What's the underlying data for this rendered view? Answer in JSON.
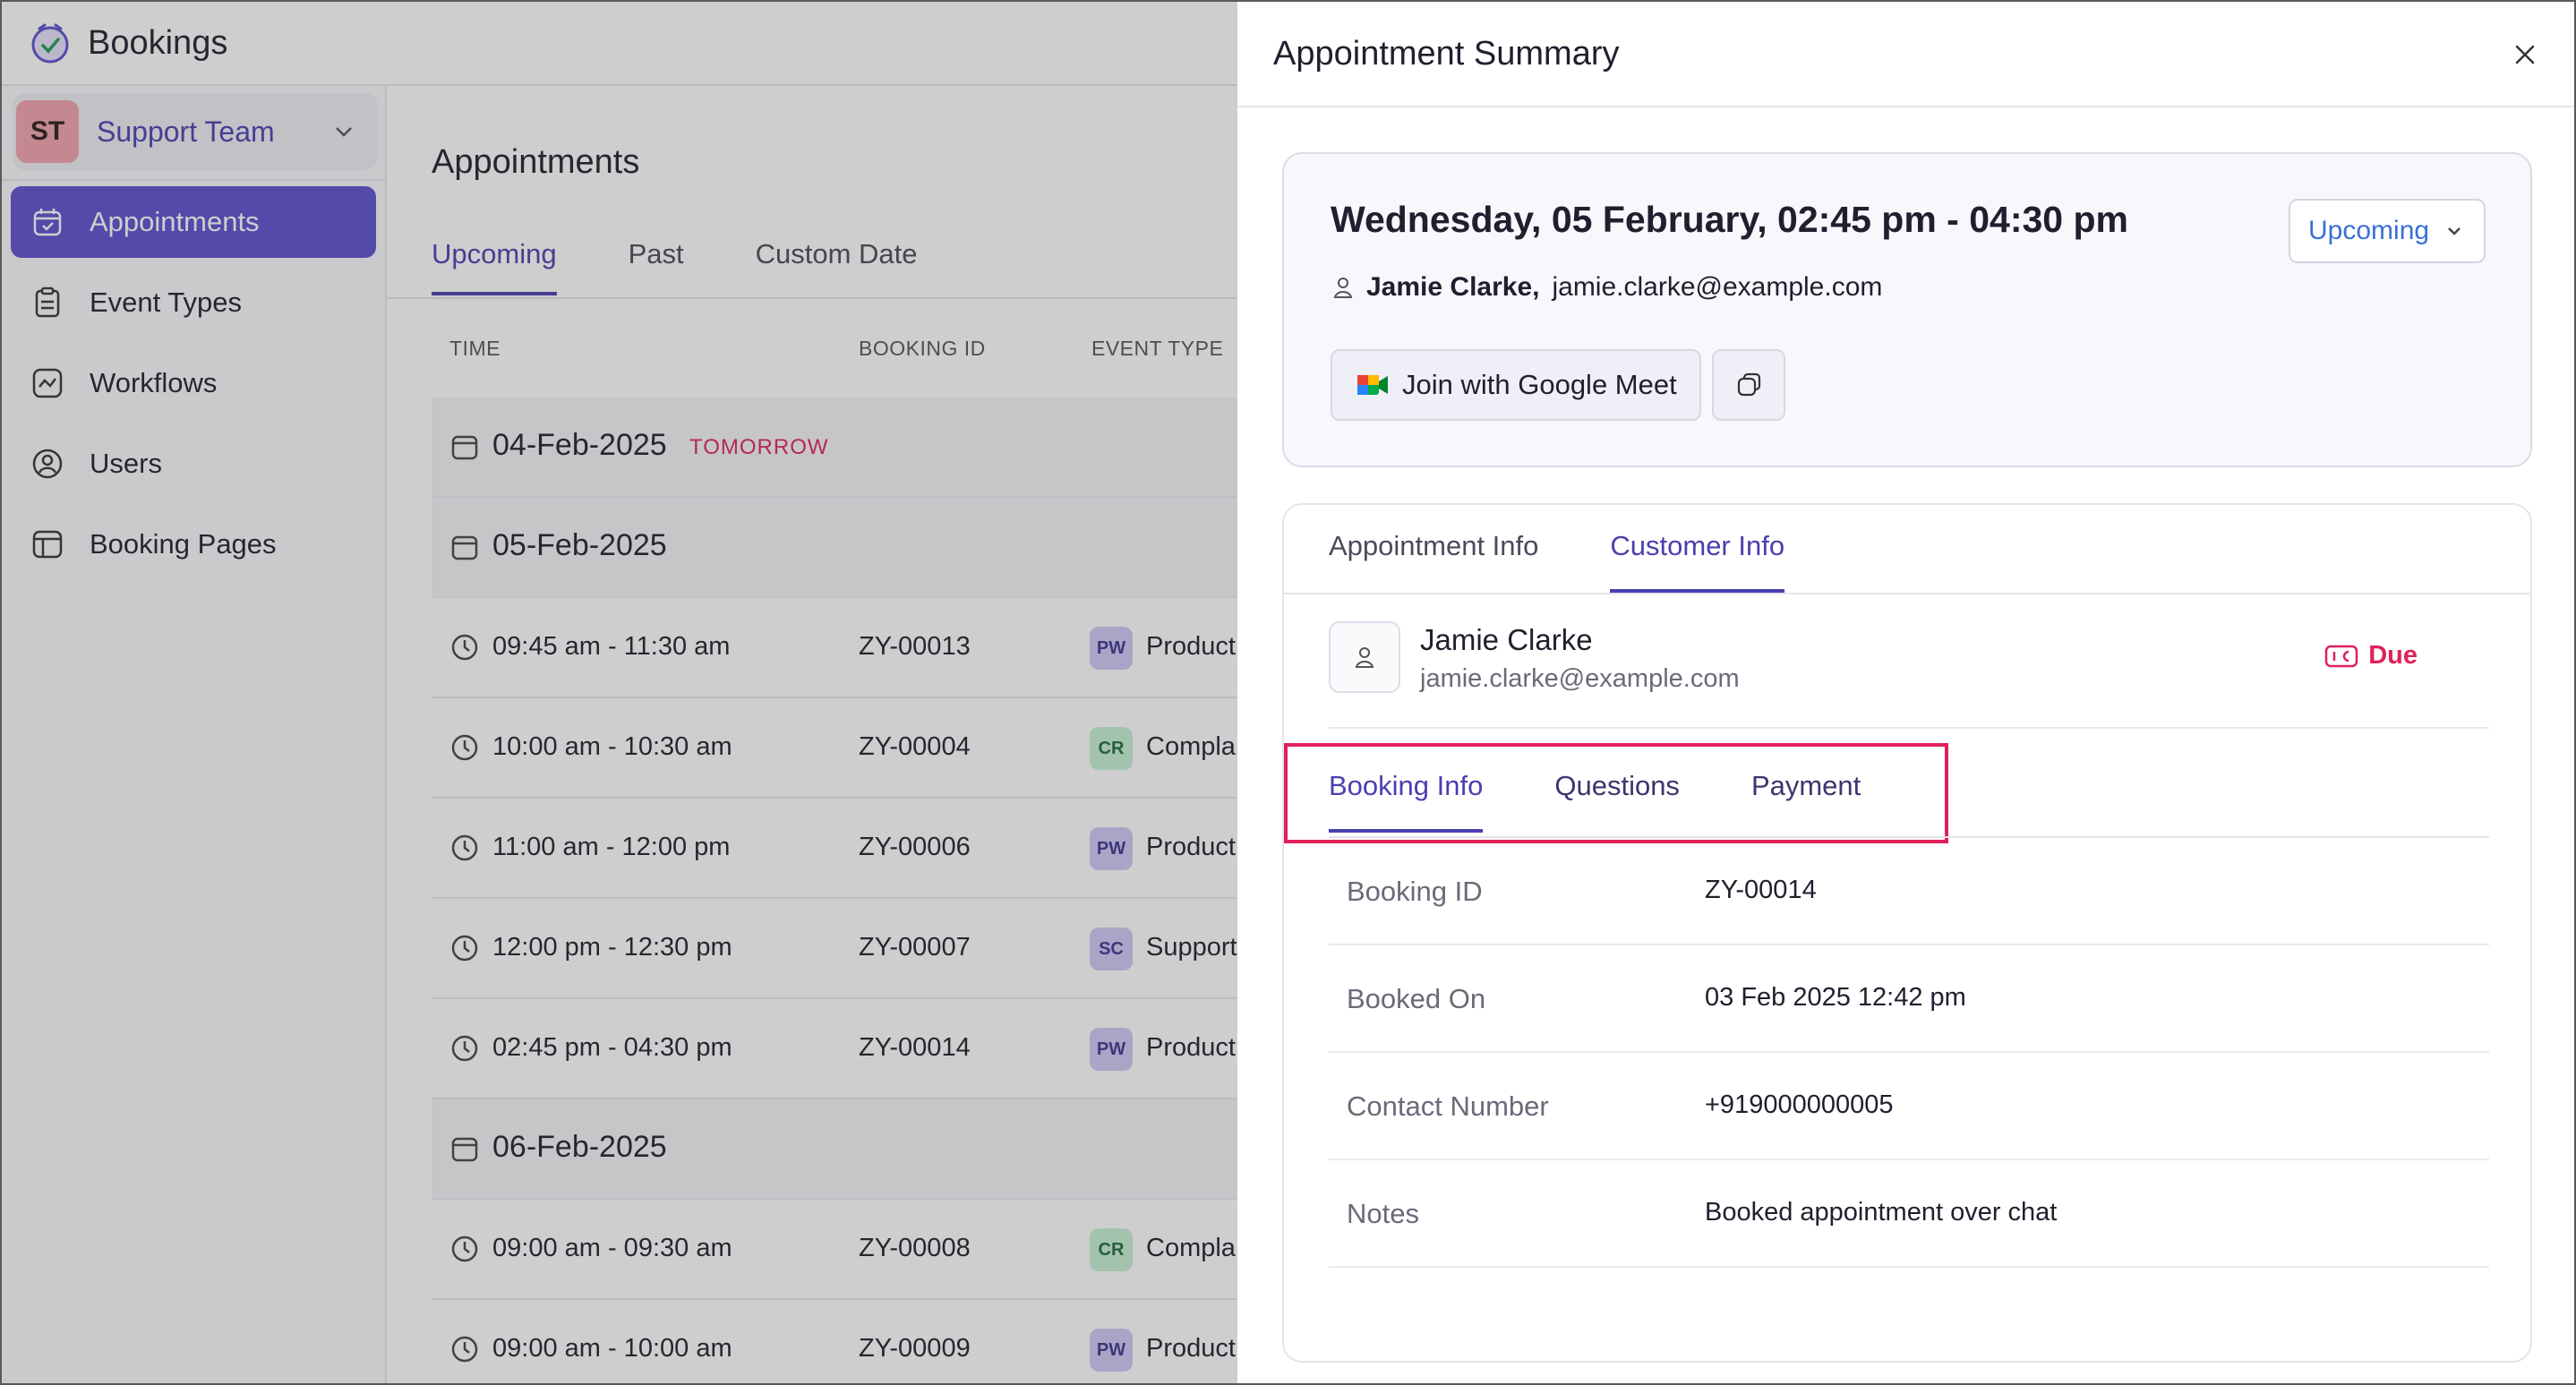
{
  "app": {
    "title": "Bookings"
  },
  "team": {
    "initials": "ST",
    "name": "Support Team"
  },
  "nav": [
    {
      "label": "Appointments",
      "icon": "calendar-icon",
      "active": true
    },
    {
      "label": "Event Types",
      "icon": "clipboard-icon"
    },
    {
      "label": "Workflows",
      "icon": "workflow-icon"
    },
    {
      "label": "Users",
      "icon": "user-circle-icon"
    },
    {
      "label": "Booking Pages",
      "icon": "booking-page-icon"
    }
  ],
  "main": {
    "title": "Appointments",
    "tabs": [
      "Upcoming",
      "Past",
      "Custom Date"
    ],
    "columns": [
      "TIME",
      "BOOKING ID",
      "EVENT TYPE"
    ],
    "rows": [
      {
        "kind": "date",
        "date": "04-Feb-2025",
        "tag": "TOMORROW"
      },
      {
        "kind": "date",
        "date": "05-Feb-2025",
        "tag": ""
      },
      {
        "kind": "appt",
        "time": "09:45 am - 11:30 am",
        "id": "ZY-00013",
        "badge": "PW",
        "type": "Product"
      },
      {
        "kind": "appt",
        "time": "10:00 am - 10:30 am",
        "id": "ZY-00004",
        "badge": "CR",
        "type": "Compla"
      },
      {
        "kind": "appt",
        "time": "11:00 am - 12:00 pm",
        "id": "ZY-00006",
        "badge": "PW",
        "type": "Product"
      },
      {
        "kind": "appt",
        "time": "12:00 pm - 12:30 pm",
        "id": "ZY-00007",
        "badge": "SC",
        "type": "Support"
      },
      {
        "kind": "appt",
        "time": "02:45 pm - 04:30 pm",
        "id": "ZY-00014",
        "badge": "PW",
        "type": "Product"
      },
      {
        "kind": "date",
        "date": "06-Feb-2025",
        "tag": ""
      },
      {
        "kind": "appt",
        "time": "09:00 am - 09:30 am",
        "id": "ZY-00008",
        "badge": "CR",
        "type": "Compla"
      },
      {
        "kind": "appt",
        "time": "09:00 am - 10:00 am",
        "id": "ZY-00009",
        "badge": "PW",
        "type": "Product"
      }
    ]
  },
  "panel": {
    "title": "Appointment Summary",
    "when": "Wednesday, 05 February, 02:45 pm - 04:30 pm",
    "customer_name": "Jamie Clarke,",
    "customer_email": "jamie.clarke@example.com",
    "status": "Upcoming",
    "meet_label": "Join with Google Meet",
    "tabs": [
      "Appointment Info",
      "Customer Info"
    ],
    "card_name": "Jamie Clarke",
    "card_email": "jamie.clarke@example.com",
    "payment_status": "Due",
    "subtabs": [
      "Booking Info",
      "Questions",
      "Payment"
    ],
    "details": [
      {
        "k": "Booking ID",
        "v": "ZY-00014"
      },
      {
        "k": "Booked On",
        "v": "03 Feb 2025 12:42 pm"
      },
      {
        "k": "Contact Number",
        "v": "+919000000005"
      },
      {
        "k": "Notes",
        "v": "Booked appointment over chat"
      }
    ]
  },
  "colors": {
    "accent": "#5b4fcf",
    "highlight": "#e0205a",
    "link": "#3b6fd6"
  }
}
